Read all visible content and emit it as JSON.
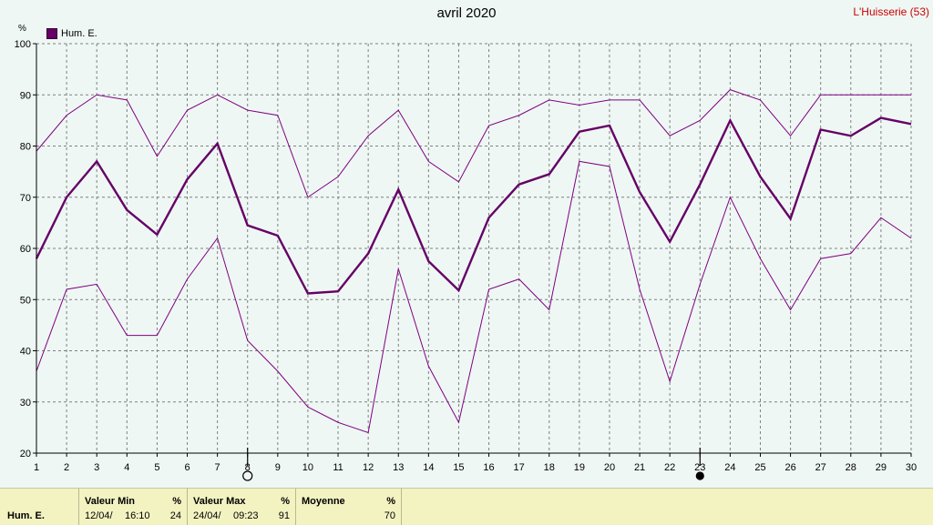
{
  "header": {
    "title": "avril 2020",
    "station": "L'Huisserie (53)",
    "unit": "%"
  },
  "chart_data": {
    "type": "line",
    "title": "avril 2020",
    "ylabel": "%",
    "ylim": [
      20,
      100
    ],
    "yticks": [
      20,
      30,
      40,
      50,
      60,
      70,
      80,
      90,
      100
    ],
    "x": [
      1,
      2,
      3,
      4,
      5,
      6,
      7,
      8,
      9,
      10,
      11,
      12,
      13,
      14,
      15,
      16,
      17,
      18,
      19,
      20,
      21,
      22,
      23,
      24,
      25,
      26,
      27,
      28,
      29,
      30
    ],
    "grid": true,
    "legend_position": "top-left",
    "series": [
      {
        "name": "Hum. E.",
        "role": "mean",
        "color": "#660066",
        "values": [
          58,
          70,
          77,
          67.5,
          62.7,
          73.5,
          80.5,
          64.5,
          62.5,
          51.2,
          51.6,
          59,
          71.5,
          57.5,
          51.8,
          66,
          72.5,
          74.5,
          82.8,
          84,
          71,
          61.3,
          72.5,
          85,
          74,
          65.8,
          83.2,
          82,
          85.5,
          84.3
        ]
      },
      {
        "role": "max",
        "color": "#800080",
        "values": [
          79,
          86,
          90,
          89,
          78,
          87,
          90,
          87,
          86,
          70,
          74,
          82,
          87,
          77,
          73,
          84,
          86,
          89,
          88,
          89,
          89,
          82,
          85,
          91,
          89,
          82,
          90,
          90,
          90,
          90
        ]
      },
      {
        "role": "min",
        "color": "#800080",
        "values": [
          36,
          52,
          53,
          43,
          43,
          54,
          62,
          42,
          36,
          29,
          26,
          24,
          56,
          37,
          26,
          52,
          54,
          48,
          77,
          76,
          52,
          34,
          53,
          70,
          58,
          48,
          58,
          59,
          66,
          62
        ]
      }
    ],
    "markers": [
      {
        "x": 8,
        "symbol": "new-moon-outline"
      },
      {
        "x": 23,
        "symbol": "full-moon-filled"
      }
    ]
  },
  "summary": {
    "series_label": "Hum. E.",
    "min": {
      "label": "Valeur Min",
      "unit": "%",
      "date": "12/04/",
      "time": "16:10",
      "value": "24"
    },
    "max": {
      "label": "Valeur Max",
      "unit": "%",
      "date": "24/04/",
      "time": "09:23",
      "value": "91"
    },
    "mean": {
      "label": "Moyenne",
      "unit": "%",
      "value": "70"
    }
  }
}
